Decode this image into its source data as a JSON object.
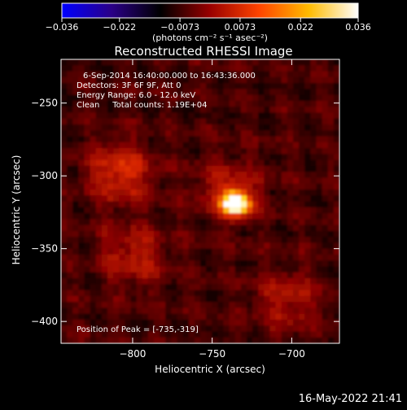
{
  "chart_data": {
    "type": "heatmap",
    "title": "Reconstructed RHESSI Image",
    "xlabel": "Heliocentric X (arcsec)",
    "ylabel": "Heliocentric Y (arcsec)",
    "xlim": [
      -845,
      -670
    ],
    "ylim": [
      -415,
      -220
    ],
    "x_ticks": [
      -800,
      -750,
      -700
    ],
    "y_ticks": [
      -250,
      -300,
      -350,
      -400
    ],
    "colorbar": {
      "min": -0.036,
      "max": 0.036,
      "ticks": [
        -0.036,
        -0.022,
        -0.0073,
        0.0073,
        0.022,
        0.036
      ],
      "tick_labels": [
        "−0.036",
        "−0.022",
        "−0.0073",
        "0.0073",
        "0.022",
        "0.036"
      ],
      "label": "(photons cm⁻² s⁻¹ asec⁻²)",
      "colors": [
        "#0000ff",
        "#2a0088",
        "#000000",
        "#990000",
        "#ff4400",
        "#ffbb00",
        "#ffffff"
      ]
    },
    "info_lines": [
      "6-Sep-2014 16:40:00.000 to 16:43:36.000",
      "Detectors: 3F 6F 9F, Att 0",
      "Energy Range: 6.0 - 12.0 keV",
      "Clean     Total counts: 1.19E+04"
    ],
    "peak_label": "Position of Peak = [-735,-319]",
    "sources": [
      {
        "x": -735,
        "y": -319,
        "flux": 0.036
      },
      {
        "x": -808,
        "y": -298,
        "flux": 0.014
      },
      {
        "x": -740,
        "y": -310,
        "flux": 0.01
      },
      {
        "x": -800,
        "y": -355,
        "flux": 0.01
      },
      {
        "x": -703,
        "y": -385,
        "flux": 0.009
      }
    ]
  },
  "footer_timestamp": "16-May-2022 21:41"
}
